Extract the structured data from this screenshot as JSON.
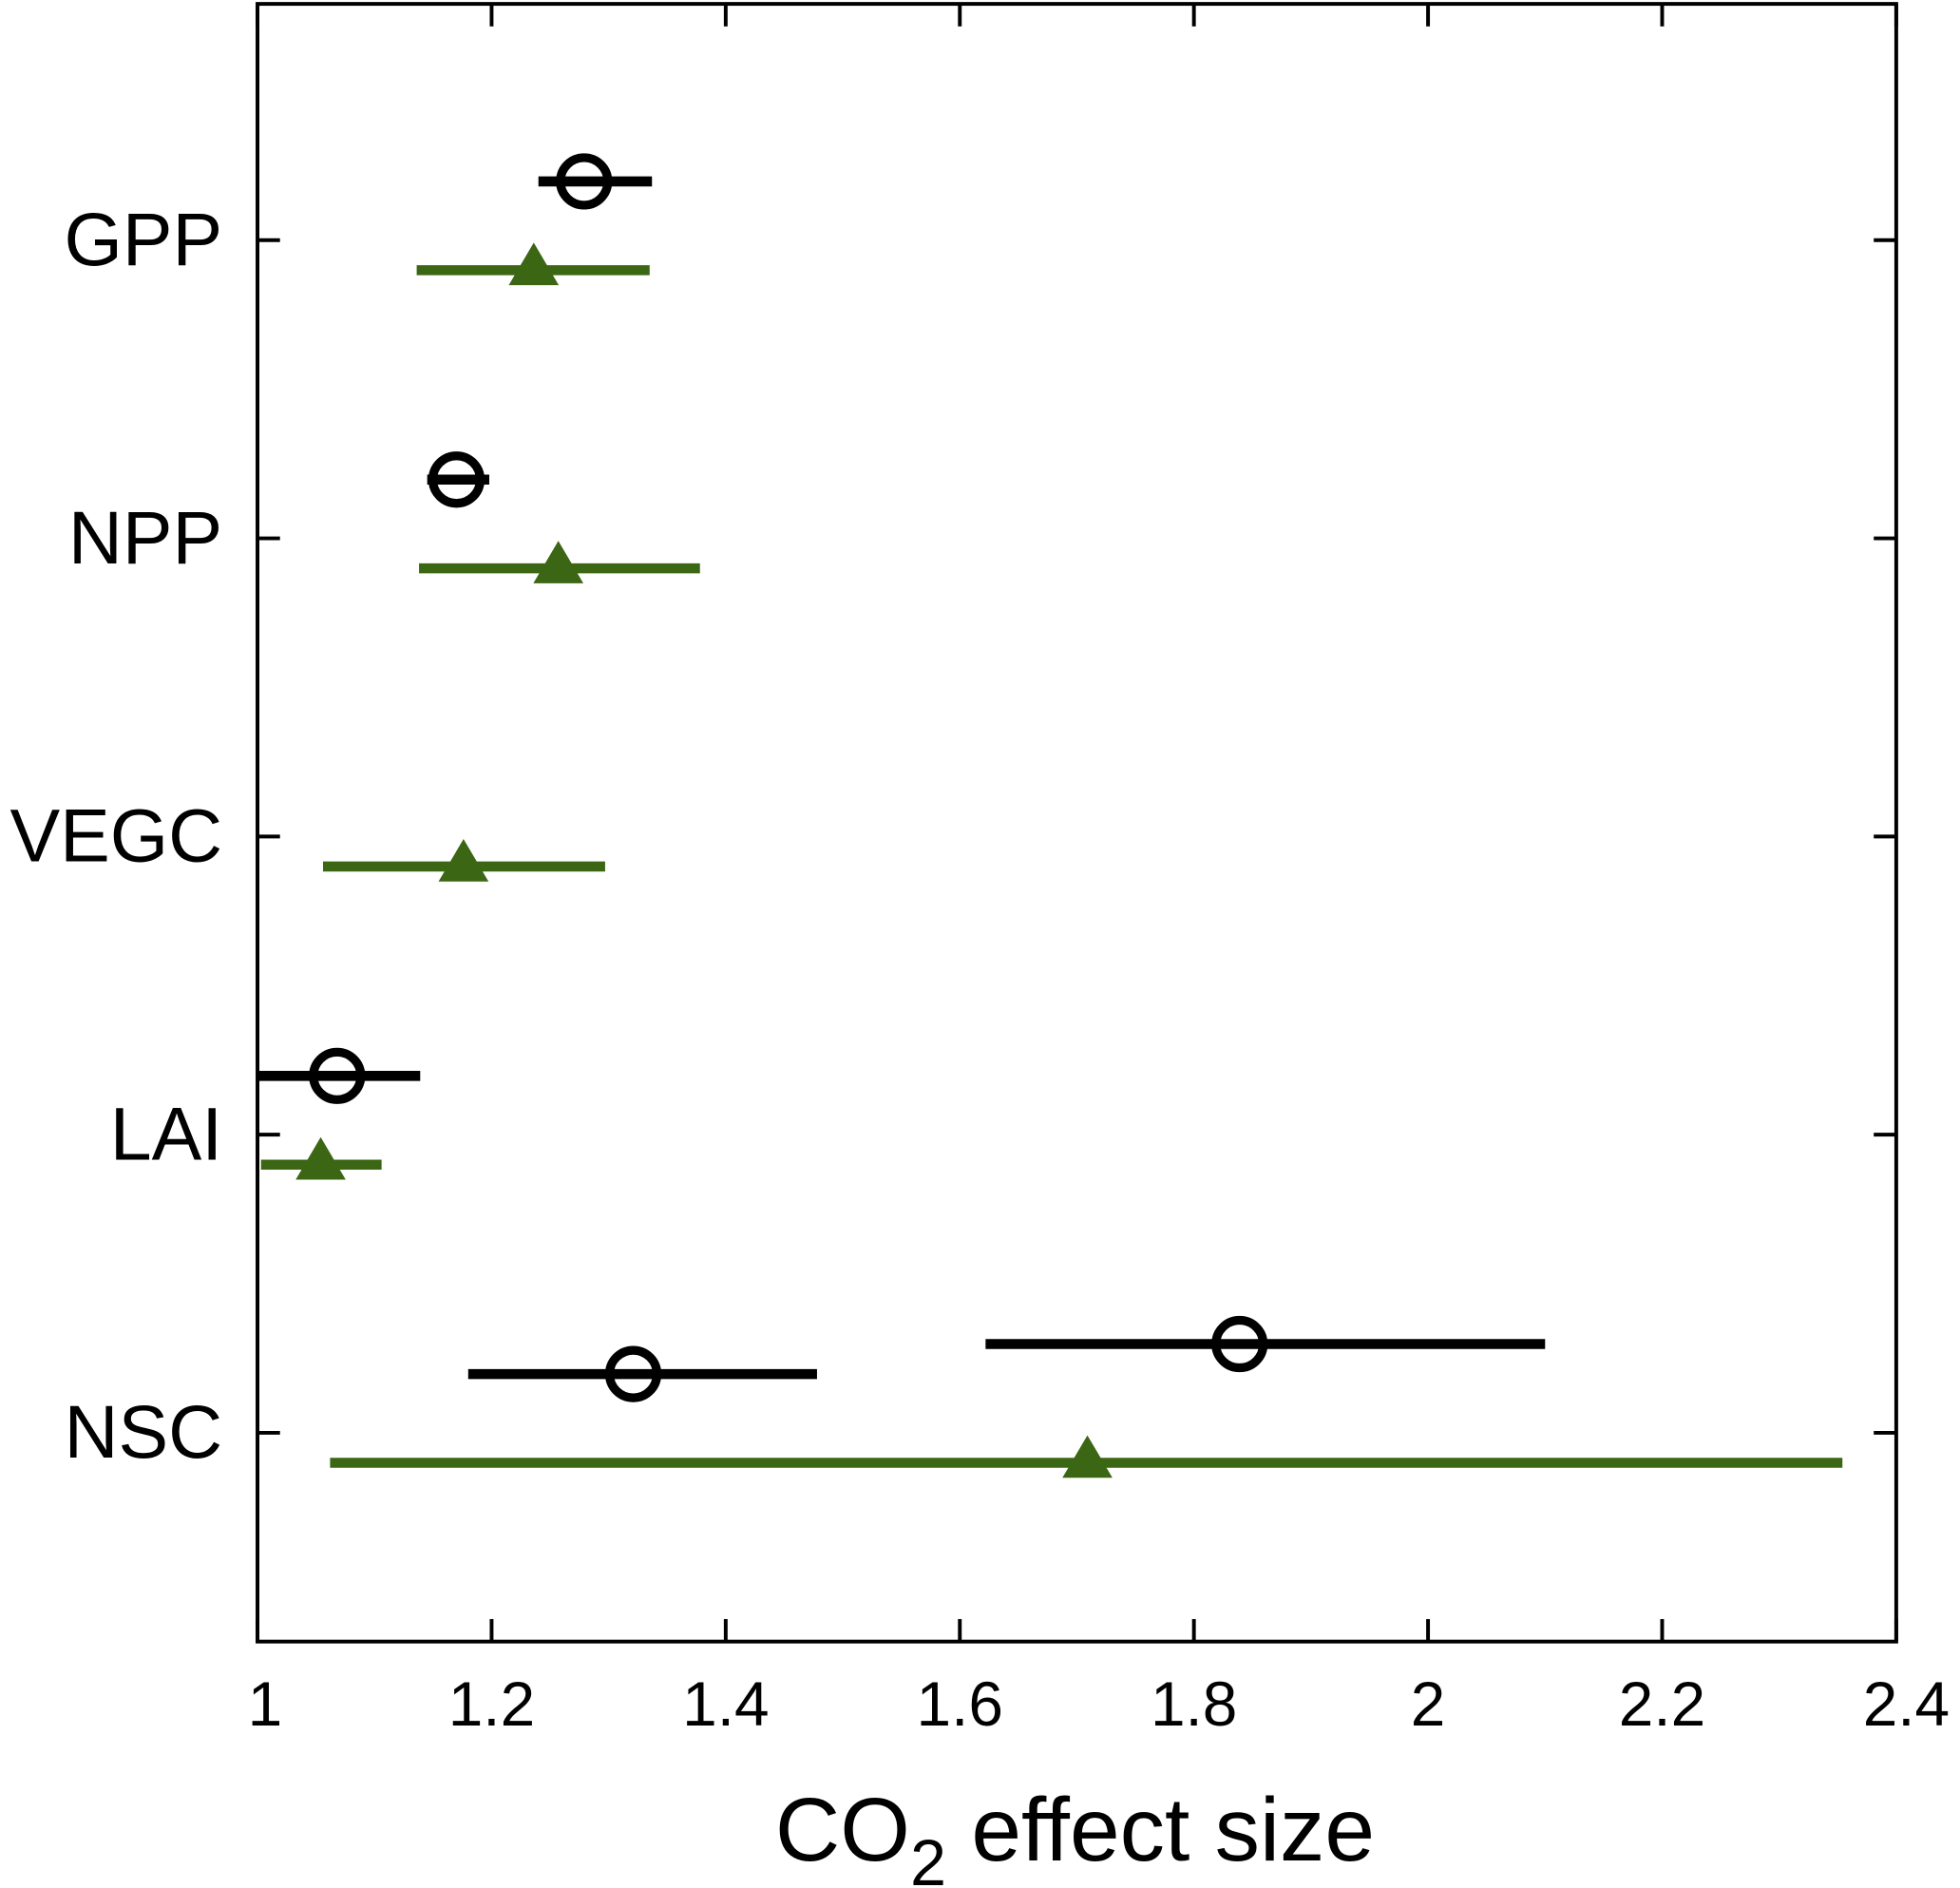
{
  "chart_data": {
    "type": "scatter",
    "title": "",
    "xlabel": "CO",
    "xlabel_sub": "2",
    "xlabel_rest": " effect size",
    "ylabel": "",
    "xlim": [
      1,
      2.4
    ],
    "xticks": [
      1,
      1.2,
      1.4,
      1.6,
      1.8,
      2,
      2.2,
      2.4
    ],
    "xtick_labels": [
      "1",
      "1.2",
      "1.4",
      "1.6",
      "1.8",
      "2",
      "2.2",
      "2.4"
    ],
    "categories": [
      "GPP",
      "NPP",
      "VEGC",
      "LAI",
      "NSC"
    ],
    "grid": false,
    "series": [
      {
        "name": "circle-series-1",
        "marker": "open-circle",
        "color": "#000000",
        "points": [
          {
            "category": "GPP",
            "value": 1.279,
            "low": 1.24,
            "high": 1.337
          },
          {
            "category": "NPP",
            "value": 1.17,
            "low": 1.145,
            "high": 1.198
          },
          {
            "category": "LAI",
            "value": 1.068,
            "low": 1.0,
            "high": 1.139
          },
          {
            "category": "NSC",
            "value": 1.321,
            "low": 1.18,
            "high": 1.478
          }
        ]
      },
      {
        "name": "circle-series-2",
        "marker": "open-circle",
        "color": "#000000",
        "points": [
          {
            "category": "NSC",
            "value": 1.839,
            "low": 1.622,
            "high": 2.1
          }
        ]
      },
      {
        "name": "triangle-series",
        "marker": "filled-triangle",
        "color": "#3b6613",
        "points": [
          {
            "category": "GPP",
            "value": 1.236,
            "low": 1.136,
            "high": 1.335
          },
          {
            "category": "NPP",
            "value": 1.257,
            "low": 1.138,
            "high": 1.378
          },
          {
            "category": "VEGC",
            "value": 1.176,
            "low": 1.056,
            "high": 1.297
          },
          {
            "category": "LAI",
            "value": 1.054,
            "low": 1.003,
            "high": 1.106
          },
          {
            "category": "NSC",
            "value": 1.709,
            "low": 1.062,
            "high": 2.354
          }
        ]
      }
    ]
  }
}
